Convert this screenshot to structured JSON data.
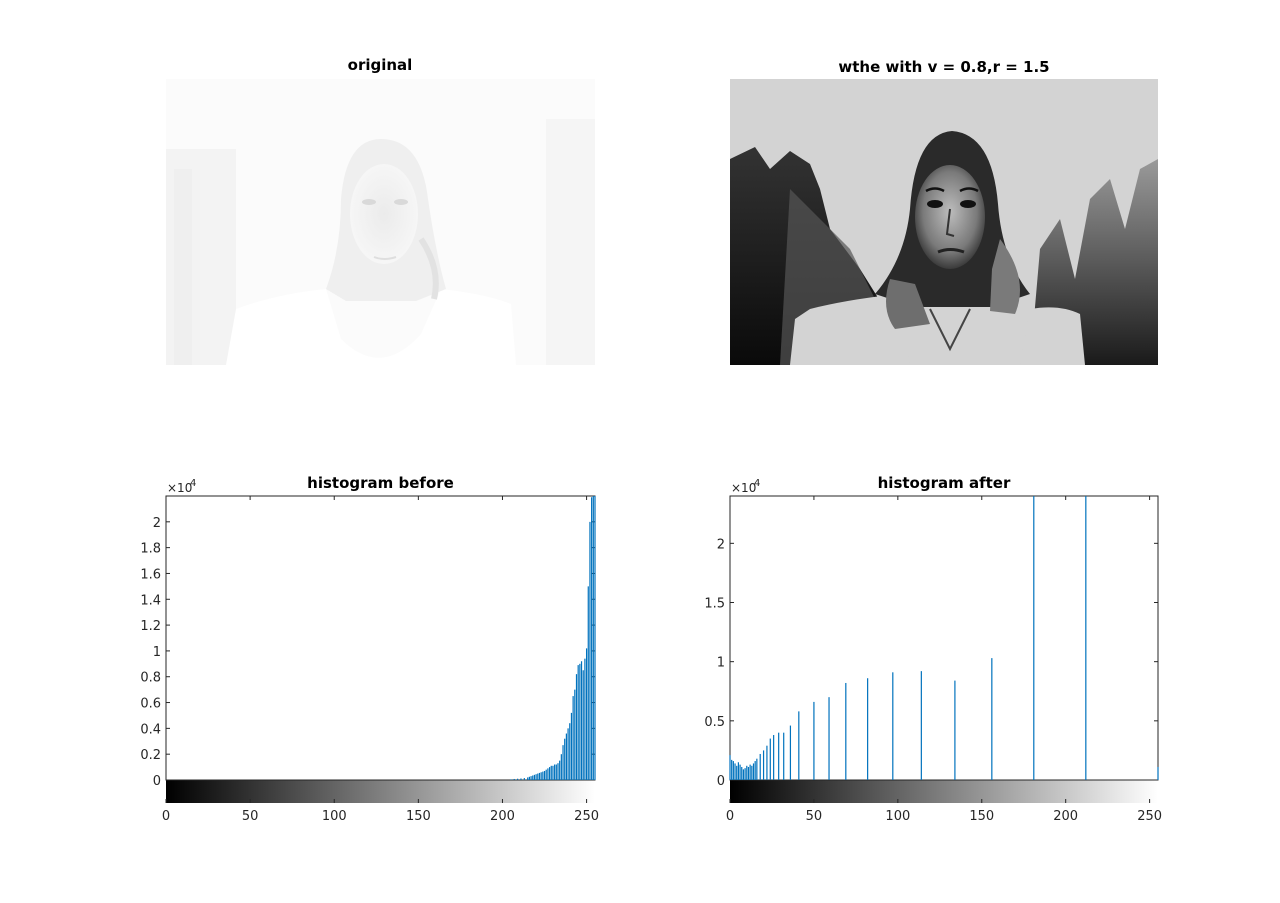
{
  "panels": {
    "original": {
      "title": "original"
    },
    "processed": {
      "title": "wthe with v = 0.8,r = 1.5"
    }
  },
  "chart_data": [
    {
      "type": "bar",
      "title": "histogram before",
      "xlabel": "",
      "ylabel": "",
      "exponent_label": "×10",
      "exponent_power": "4",
      "xlim": [
        0,
        255
      ],
      "ylim": [
        0,
        22000
      ],
      "xticks": [
        "0",
        "50",
        "100",
        "150",
        "200",
        "250"
      ],
      "yticks": [
        "0",
        "0.2",
        "0.4",
        "0.6",
        "0.8",
        "1",
        "1.2",
        "1.4",
        "1.6",
        "1.8",
        "2"
      ],
      "colorbar": "grayscale 0-255 below x axis",
      "bar_color": "#0072BD",
      "x": [
        205,
        207,
        209,
        211,
        213,
        215,
        216,
        217,
        218,
        219,
        220,
        221,
        222,
        223,
        224,
        225,
        226,
        227,
        228,
        229,
        230,
        231,
        232,
        233,
        234,
        235,
        236,
        237,
        238,
        239,
        240,
        241,
        242,
        243,
        244,
        245,
        246,
        247,
        248,
        249,
        250,
        251,
        252,
        253,
        254,
        255
      ],
      "values": [
        50,
        80,
        100,
        120,
        150,
        200,
        250,
        300,
        350,
        400,
        450,
        500,
        550,
        600,
        650,
        700,
        800,
        900,
        1000,
        1100,
        1100,
        1200,
        1200,
        1300,
        1500,
        2000,
        2700,
        3200,
        3600,
        4000,
        4400,
        5200,
        6500,
        7000,
        8200,
        8900,
        9000,
        9200,
        8500,
        9400,
        10200,
        15000,
        20000,
        21900,
        22000,
        22000
      ]
    },
    {
      "type": "bar",
      "title": "histogram after",
      "xlabel": "",
      "ylabel": "",
      "exponent_label": "×10",
      "exponent_power": "4",
      "xlim": [
        0,
        255
      ],
      "ylim": [
        0,
        24000
      ],
      "xticks": [
        "0",
        "50",
        "100",
        "150",
        "200",
        "250"
      ],
      "yticks": [
        "0",
        "0.5",
        "1",
        "1.5",
        "2"
      ],
      "colorbar": "grayscale 0-255 below x axis",
      "bar_color": "#0072BD",
      "x": [
        0,
        1,
        2,
        3,
        4,
        5,
        6,
        7,
        8,
        9,
        10,
        11,
        12,
        13,
        14,
        15,
        16,
        18,
        20,
        22,
        24,
        26,
        29,
        32,
        36,
        41,
        50,
        59,
        69,
        82,
        97,
        114,
        134,
        156,
        181,
        212,
        255
      ],
      "values": [
        2100,
        1700,
        1600,
        1400,
        1200,
        1500,
        1300,
        1100,
        900,
        1000,
        1200,
        1100,
        1300,
        1200,
        1400,
        1600,
        1800,
        2200,
        2500,
        2900,
        3500,
        3800,
        4000,
        4000,
        4600,
        5800,
        6600,
        7000,
        8200,
        8600,
        9100,
        9200,
        8400,
        10300,
        24000,
        24000,
        1100
      ]
    }
  ]
}
